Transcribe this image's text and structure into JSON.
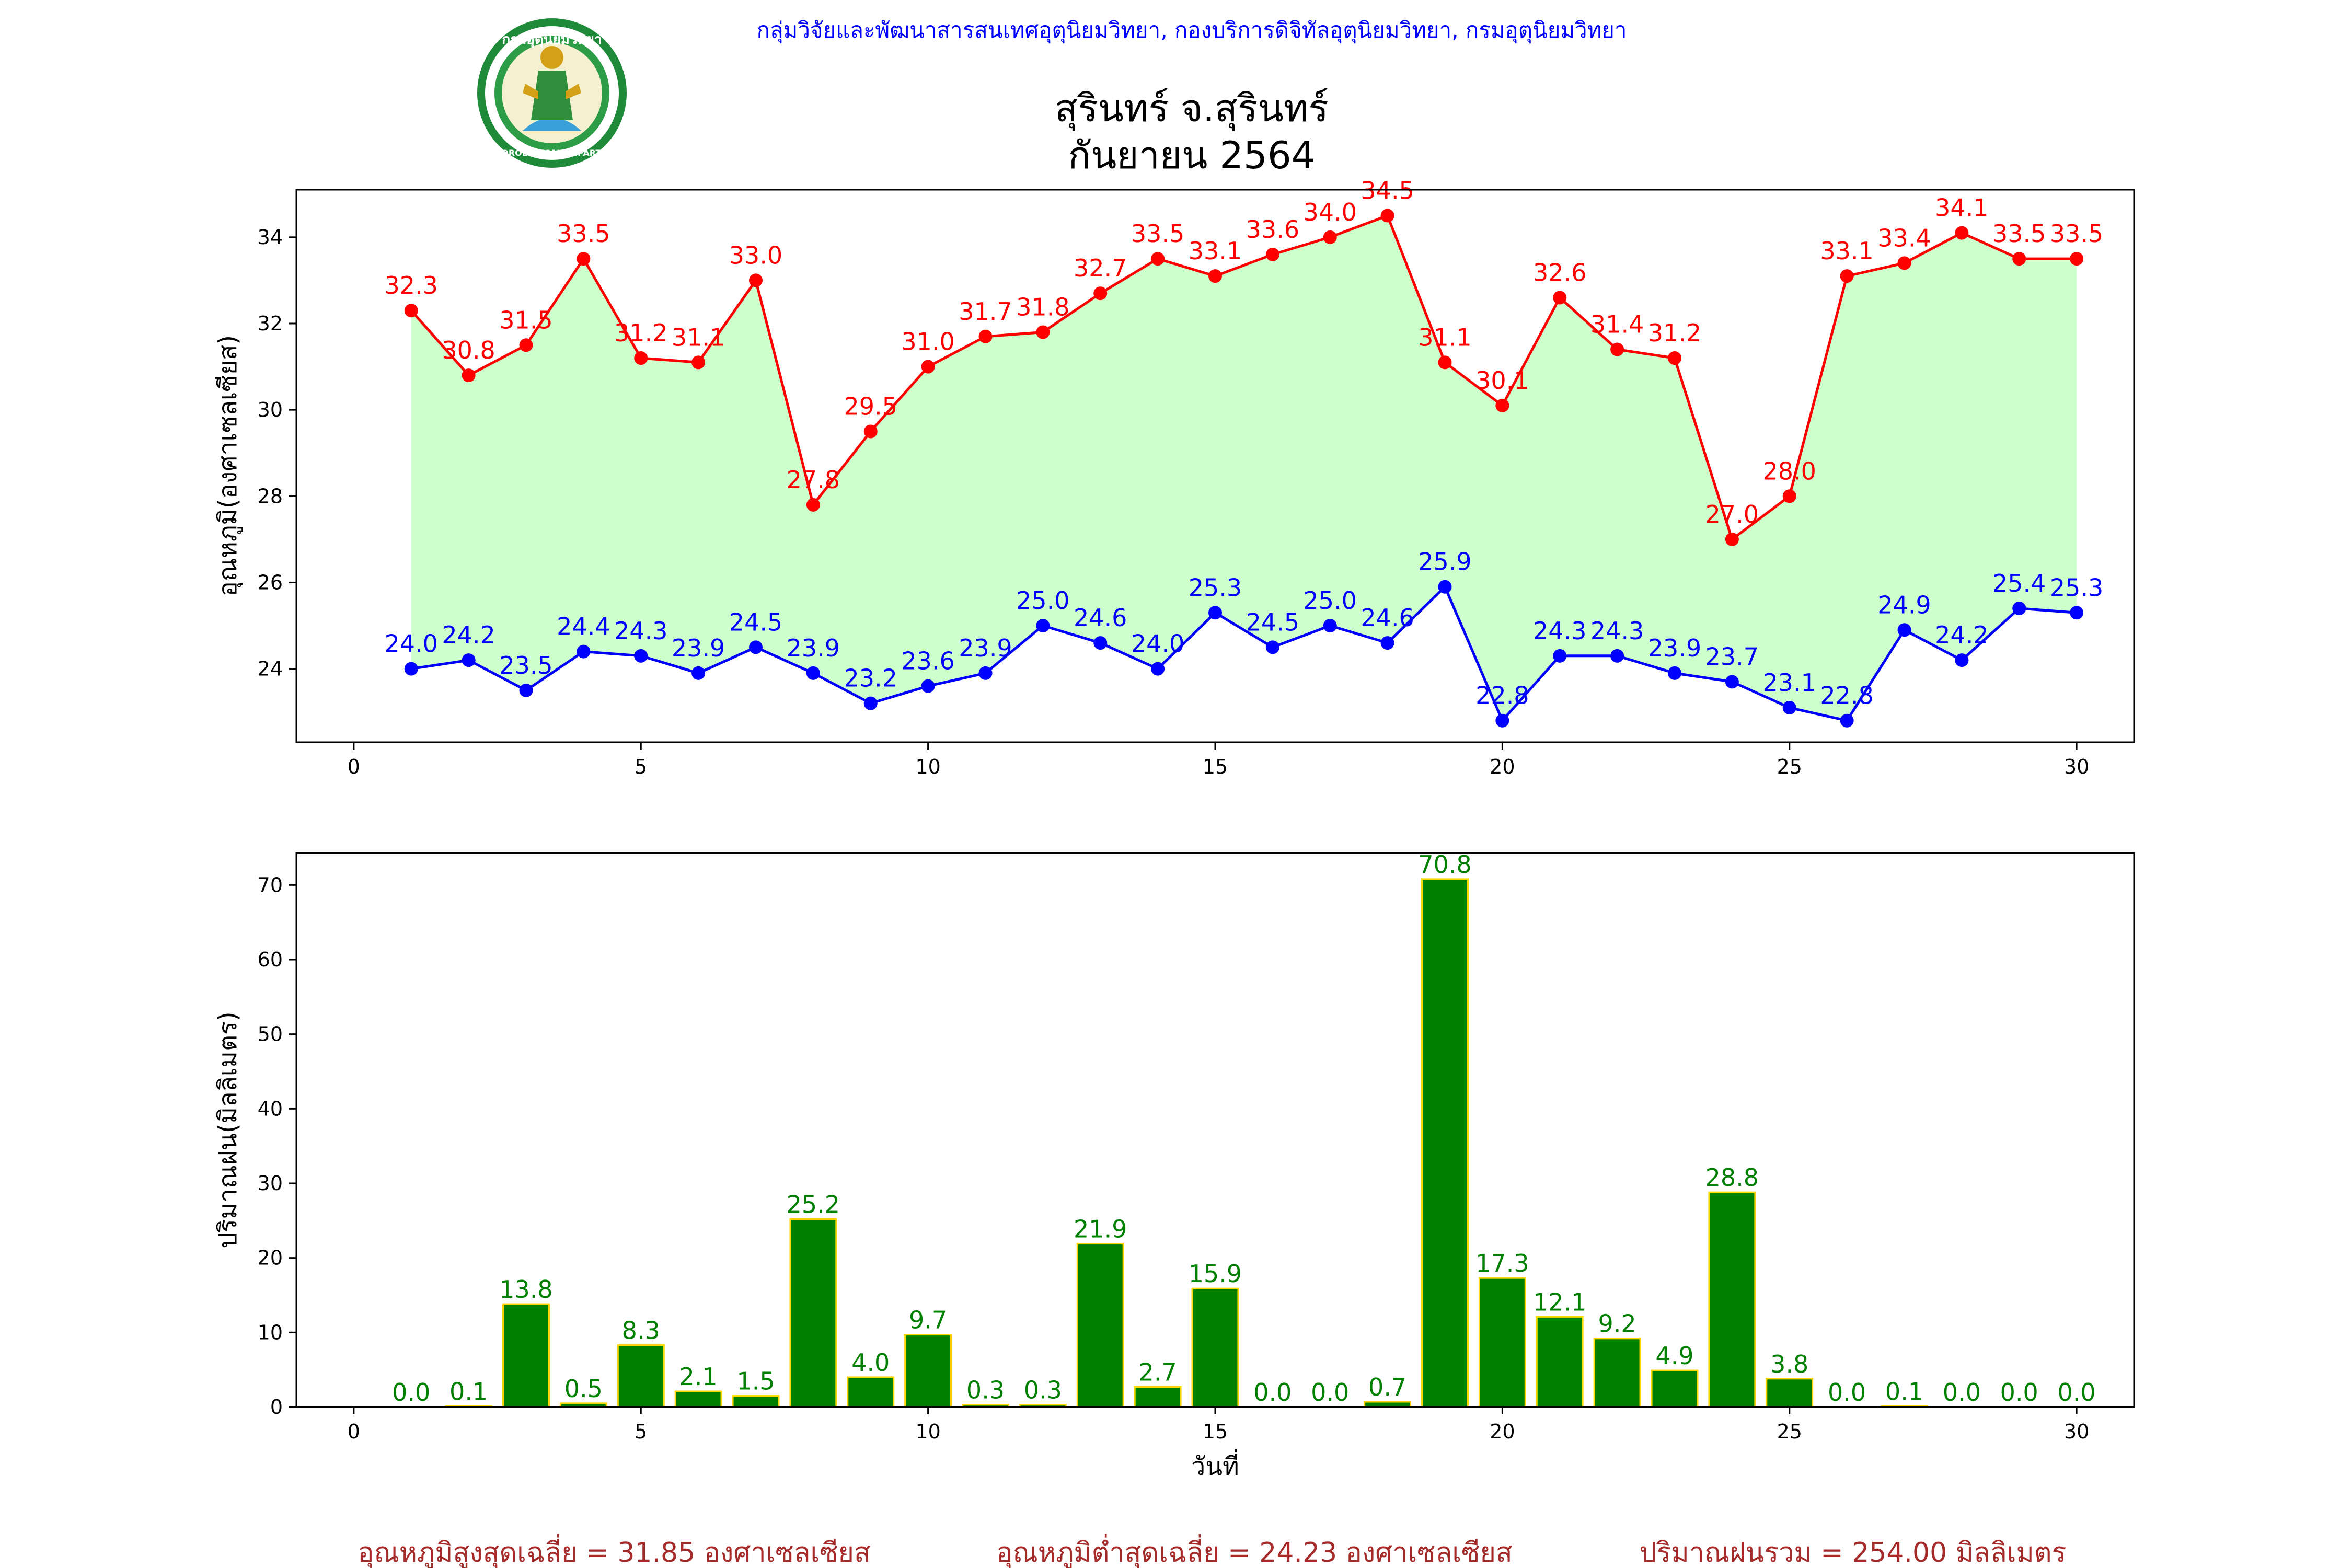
{
  "header": {
    "org_line": "กลุ่มวิจัยและพัฒนาสารสนเทศอุตุนิยมวิทยา, กองบริการดิจิทัลอุตุนิยมวิทยา, กรมอุตุนิยมวิทยา",
    "logo_top_text": "กรมอุตุนิยมวิทยา",
    "logo_bottom_text": "METEOROLOGICAL DEPARTMENT"
  },
  "title": {
    "line1": "สุรินทร์ จ.สุรินทร์",
    "line2": "กันยายน 2564"
  },
  "footer": {
    "avg_max": "อุณหภูมิสูงสุดเฉลี่ย = 31.85 องศาเซลเซียส",
    "avg_min": "อุณหภูมิต่ำสุดเฉลี่ย = 24.23 องศาเซลเซียส",
    "total_rain": "ปริมาณฝนรวม = 254.00 มิลลิเมตร"
  },
  "colors": {
    "max_line": "#ff0000",
    "min_line": "#0000ff",
    "fill": "#ccffcc",
    "bar_fill": "#008000",
    "bar_edge": "#ffd700",
    "rain_label": "#008000"
  },
  "chart_data": [
    {
      "type": "line",
      "ylabel": "อุณหภูมิ(องศาเซลเซียส)",
      "xlabel": "",
      "xlim": [
        -1.0,
        31.0
      ],
      "ylim": [
        22.3,
        35.1
      ],
      "xticks": [
        0,
        5,
        10,
        15,
        20,
        25,
        30
      ],
      "yticks": [
        24,
        26,
        28,
        30,
        32,
        34
      ],
      "x": [
        1,
        2,
        3,
        4,
        5,
        6,
        7,
        8,
        9,
        10,
        11,
        12,
        13,
        14,
        15,
        16,
        17,
        18,
        19,
        20,
        21,
        22,
        23,
        24,
        25,
        26,
        27,
        28,
        29,
        30
      ],
      "series": [
        {
          "values": [
            32.3,
            30.8,
            31.5,
            33.5,
            31.2,
            31.1,
            33.0,
            27.8,
            29.5,
            31.0,
            31.7,
            31.8,
            32.7,
            33.5,
            33.1,
            33.6,
            34.0,
            34.5,
            31.1,
            30.1,
            32.6,
            31.4,
            31.2,
            27.0,
            28.0,
            33.1,
            33.4,
            34.1,
            33.5,
            33.5
          ]
        },
        {
          "values": [
            24.0,
            24.2,
            23.5,
            24.4,
            24.3,
            23.9,
            24.5,
            23.9,
            23.2,
            23.6,
            23.9,
            25.0,
            24.6,
            24.0,
            25.3,
            24.5,
            25.0,
            24.6,
            25.9,
            22.8,
            24.3,
            24.3,
            23.9,
            23.7,
            23.1,
            22.8,
            24.9,
            24.2,
            25.4,
            25.3
          ]
        }
      ]
    },
    {
      "type": "bar",
      "ylabel": "ปริมาณฝน(มิลลิเมตร)",
      "xlabel": "วันที่",
      "xlim": [
        -1.0,
        31.0
      ],
      "ylim": [
        0,
        74.3
      ],
      "xticks": [
        0,
        5,
        10,
        15,
        20,
        25,
        30
      ],
      "yticks": [
        0,
        10,
        20,
        30,
        40,
        50,
        60,
        70
      ],
      "categories": [
        1,
        2,
        3,
        4,
        5,
        6,
        7,
        8,
        9,
        10,
        11,
        12,
        13,
        14,
        15,
        16,
        17,
        18,
        19,
        20,
        21,
        22,
        23,
        24,
        25,
        26,
        27,
        28,
        29,
        30
      ],
      "values": [
        0.0,
        0.1,
        13.8,
        0.5,
        8.3,
        2.1,
        1.5,
        25.2,
        4.0,
        9.7,
        0.3,
        0.3,
        21.9,
        2.7,
        15.9,
        0.0,
        0.0,
        0.7,
        70.8,
        17.3,
        12.1,
        9.2,
        4.9,
        28.8,
        3.8,
        0.0,
        0.1,
        0.0,
        0.0,
        0.0
      ]
    }
  ]
}
